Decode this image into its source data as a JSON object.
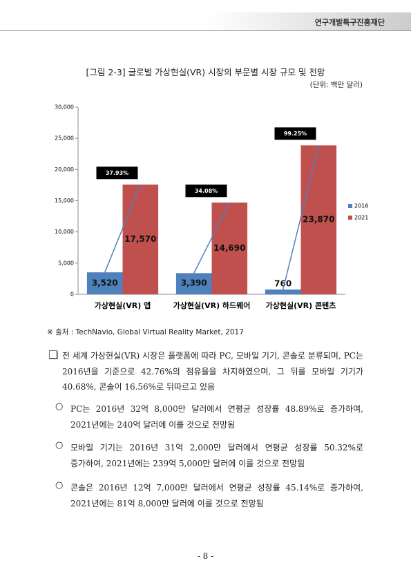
{
  "header": {
    "organization": "연구개발특구진흥재단"
  },
  "figure": {
    "title": "[그림 2-3] 글로벌 가상현실(VR) 시장의 부문별 시장 규모 및 전망",
    "unit": "(단위: 백만 달러)",
    "source": "※ 출처 : TechNavio, Global Virtual Reality Market, 2017"
  },
  "chart_data": {
    "type": "bar",
    "categories": [
      "가상현실(VR) 앱",
      "가상현실(VR) 하드웨어",
      "가상현실(VR) 콘텐츠"
    ],
    "series": [
      {
        "name": "2016",
        "color": "#4f81bd",
        "values": [
          3520,
          3390,
          760
        ],
        "value_labels": [
          "3,520",
          "3,390",
          "760"
        ]
      },
      {
        "name": "2021",
        "color": "#c0504d",
        "values": [
          17570,
          14690,
          23870
        ],
        "value_labels": [
          "17,570",
          "14,690",
          "23,870"
        ]
      }
    ],
    "annotations": [
      "37.93%",
      "34.08%",
      "99.25%"
    ],
    "ylim": [
      0,
      30000
    ],
    "yticks": [
      0,
      {
        "value": 5000,
        "label": "5,000"
      },
      {
        "value": 10000,
        "label": "10,000"
      },
      {
        "value": 15000,
        "label": "15,000"
      },
      {
        "value": 20000,
        "label": "20,000"
      },
      {
        "value": 25000,
        "label": "25,000"
      },
      {
        "value": 30000,
        "label": "30,000"
      }
    ],
    "legend": "right"
  },
  "body": {
    "main": {
      "marker": "❑",
      "text": "전 세계 가상현실(VR) 시장은 플랫폼에 따라 PC, 모바일 기기, 콘솔로 분류되며, PC는 2016년을 기준으로 42.76%의 점유율을 차지하였으며, 그 뒤를 모바일 기기가 40.68%, 콘솔이 16.56%로 뒤따르고 있음"
    },
    "bullets": [
      {
        "marker": "○",
        "text": "PC는 2016년 32억 8,000만 달러에서 연평균 성장률 48.89%로 증가하여, 2021년에는 240억 달러에 이를 것으로 전망됨"
      },
      {
        "marker": "○",
        "text": "모바일 기기는 2016년 31억 2,000만 달러에서 연평균 성장률 50.32%로 증가하여, 2021년에는 239억 5,000만 달러에 이를 것으로 전망됨"
      },
      {
        "marker": "○",
        "text": "콘솔은 2016년 12억 7,000만 달러에서 연평균 성장률 45.14%로 증가하여, 2021년에는 81억 8,000만 달러에 이를 것으로 전망됨"
      }
    ]
  },
  "footer": {
    "page": "- 8 -"
  }
}
